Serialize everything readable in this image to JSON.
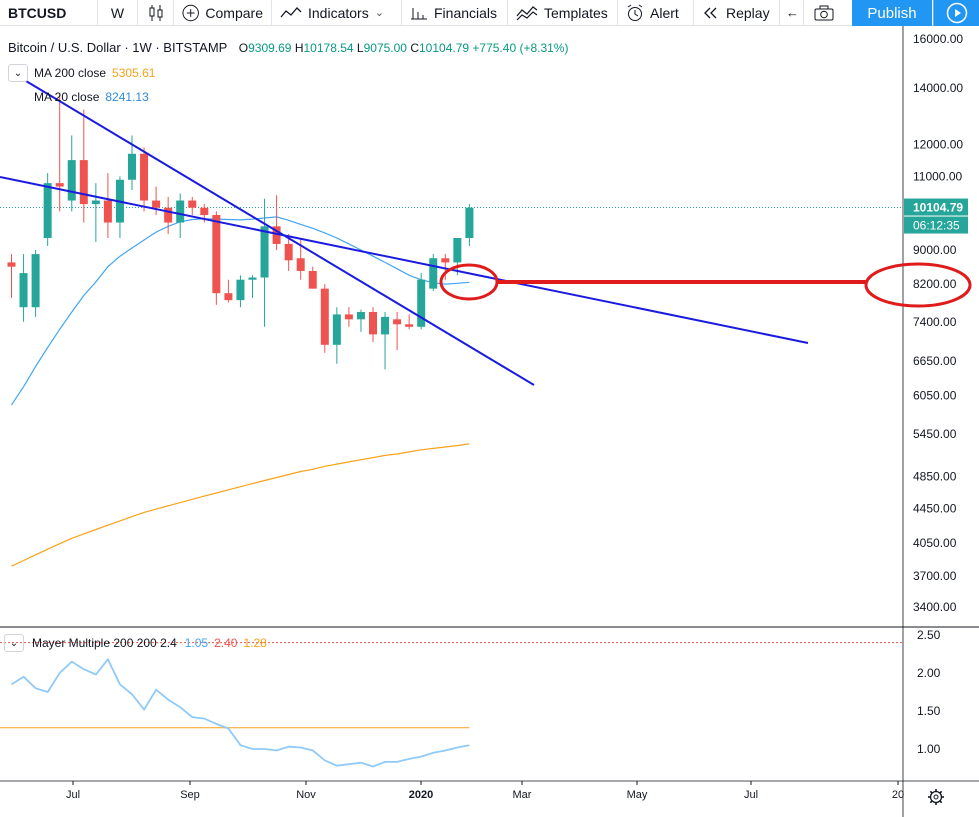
{
  "toolbar": {
    "symbol": "BTCUSD",
    "interval": "W",
    "compare": "Compare",
    "indicators": "Indicators",
    "financials": "Financials",
    "templates": "Templates",
    "alert": "Alert",
    "replay": "Replay",
    "publish": "Publish"
  },
  "legend": {
    "title": "Bitcoin / U.S. Dollar · 1W · BITSTAMP",
    "o_label": "O",
    "o": "9309.69",
    "h_label": "H",
    "h": "10178.54",
    "l_label": "L",
    "l": "9075.00",
    "c_label": "C",
    "c": "10104.79",
    "change": "+775.40 (+8.31%)",
    "ma200_label": "MA 200 close",
    "ma200_value": "5305.61",
    "ma20_label": "MA 20 close",
    "ma20_value": "8241.13",
    "mayer_label": "Mayer Multiple 200 200 2.4",
    "mayer_v1": "1.05",
    "mayer_v2": "2.40",
    "mayer_v3": "1.28"
  },
  "colors": {
    "up": "#26a69a",
    "down": "#ef5350",
    "ma20": "#42a5f5",
    "ma200": "#f7a21b",
    "trendline": "#1b1be0",
    "annotation": "#e01b1b",
    "accent": "#2196f3",
    "mayer": "#90caf9"
  },
  "chart_data": {
    "type": "candlestick",
    "title": "Bitcoin / U.S. Dollar · 1W · BITSTAMP",
    "y_scale": "log",
    "price_ticks": [
      16000,
      14000,
      12000,
      11000,
      10104.79,
      9000,
      8200,
      7400,
      6650,
      6050,
      5450,
      4850,
      4450,
      4050,
      3700,
      3400
    ],
    "current_price": "10104.79",
    "countdown": "06:12:35",
    "time_ticks": [
      "Jul",
      "Sep",
      "Nov",
      "2020",
      "Mar",
      "May",
      "Jul",
      "20"
    ],
    "candles": [
      {
        "o": 8700,
        "h": 8900,
        "l": 7900,
        "c": 8600
      },
      {
        "o": 7700,
        "h": 8900,
        "l": 7400,
        "c": 8450
      },
      {
        "o": 7700,
        "h": 9000,
        "l": 7500,
        "c": 8900
      },
      {
        "o": 9300,
        "h": 11100,
        "l": 9100,
        "c": 10800
      },
      {
        "o": 10800,
        "h": 13800,
        "l": 10000,
        "c": 10700
      },
      {
        "o": 10300,
        "h": 12300,
        "l": 10000,
        "c": 11500
      },
      {
        "o": 11500,
        "h": 13200,
        "l": 9700,
        "c": 10200
      },
      {
        "o": 10200,
        "h": 10800,
        "l": 9200,
        "c": 10300
      },
      {
        "o": 10300,
        "h": 11100,
        "l": 9300,
        "c": 9700
      },
      {
        "o": 9700,
        "h": 11000,
        "l": 9300,
        "c": 10900
      },
      {
        "o": 10900,
        "h": 12300,
        "l": 10600,
        "c": 11700
      },
      {
        "o": 11700,
        "h": 11900,
        "l": 10000,
        "c": 10300
      },
      {
        "o": 10300,
        "h": 10700,
        "l": 9900,
        "c": 10100
      },
      {
        "o": 10100,
        "h": 10400,
        "l": 9400,
        "c": 9700
      },
      {
        "o": 9700,
        "h": 10500,
        "l": 9300,
        "c": 10300
      },
      {
        "o": 10300,
        "h": 10400,
        "l": 9900,
        "c": 10100
      },
      {
        "o": 10100,
        "h": 10200,
        "l": 9700,
        "c": 9900
      },
      {
        "o": 9900,
        "h": 10000,
        "l": 7750,
        "c": 8000
      },
      {
        "o": 8000,
        "h": 8300,
        "l": 7800,
        "c": 7850
      },
      {
        "o": 7850,
        "h": 8400,
        "l": 7700,
        "c": 8300
      },
      {
        "o": 8300,
        "h": 8400,
        "l": 7900,
        "c": 8350
      },
      {
        "o": 8350,
        "h": 10350,
        "l": 7300,
        "c": 9600
      },
      {
        "o": 9600,
        "h": 10450,
        "l": 9000,
        "c": 9150
      },
      {
        "o": 9150,
        "h": 9400,
        "l": 8500,
        "c": 8750
      },
      {
        "o": 8800,
        "h": 9300,
        "l": 8300,
        "c": 8500
      },
      {
        "o": 8500,
        "h": 8600,
        "l": 8100,
        "c": 8100
      },
      {
        "o": 8100,
        "h": 8200,
        "l": 6800,
        "c": 6950
      },
      {
        "o": 6950,
        "h": 7700,
        "l": 6600,
        "c": 7550
      },
      {
        "o": 7550,
        "h": 7700,
        "l": 7300,
        "c": 7450
      },
      {
        "o": 7450,
        "h": 7650,
        "l": 7200,
        "c": 7600
      },
      {
        "o": 7600,
        "h": 7700,
        "l": 7000,
        "c": 7150
      },
      {
        "o": 7150,
        "h": 7600,
        "l": 6500,
        "c": 7500
      },
      {
        "o": 7450,
        "h": 7600,
        "l": 6850,
        "c": 7350
      },
      {
        "o": 7350,
        "h": 7550,
        "l": 7250,
        "c": 7300
      },
      {
        "o": 7300,
        "h": 8450,
        "l": 7250,
        "c": 8300
      },
      {
        "o": 8100,
        "h": 8900,
        "l": 8050,
        "c": 8800
      },
      {
        "o": 8800,
        "h": 8900,
        "l": 8300,
        "c": 8700
      },
      {
        "o": 8700,
        "h": 9300,
        "l": 8400,
        "c": 9300
      },
      {
        "o": 9300,
        "h": 10200,
        "l": 9100,
        "c": 10100
      }
    ],
    "ma20": [
      5900,
      6200,
      6550,
      6900,
      7250,
      7600,
      7950,
      8250,
      8600,
      8850,
      9050,
      9250,
      9450,
      9600,
      9720,
      9780,
      9800,
      9790,
      9780,
      9770,
      9790,
      9820,
      9850,
      9760,
      9650,
      9550,
      9430,
      9300,
      9150,
      9000,
      8850,
      8700,
      8550,
      8400,
      8300,
      8230,
      8200,
      8220,
      8241
    ],
    "ma200": [
      3800,
      3860,
      3920,
      3980,
      4040,
      4100,
      4150,
      4200,
      4250,
      4300,
      4350,
      4400,
      4440,
      4480,
      4520,
      4560,
      4600,
      4640,
      4680,
      4720,
      4760,
      4800,
      4840,
      4880,
      4920,
      4950,
      4990,
      5020,
      5050,
      5080,
      5110,
      5140,
      5160,
      5190,
      5220,
      5240,
      5260,
      5280,
      5306
    ],
    "mayer_multiple": [
      1.85,
      1.95,
      1.8,
      1.75,
      2.0,
      2.15,
      2.05,
      1.98,
      2.18,
      1.85,
      1.72,
      1.52,
      1.78,
      1.65,
      1.55,
      1.42,
      1.4,
      1.33,
      1.27,
      1.05,
      1.0,
      1.0,
      0.98,
      1.03,
      1.02,
      0.98,
      0.85,
      0.78,
      0.8,
      0.82,
      0.77,
      0.83,
      0.83,
      0.87,
      0.9,
      0.95,
      0.98,
      1.02,
      1.05
    ],
    "mayer_threshold_low": 1.28,
    "mayer_threshold_high": 2.4,
    "mayer_ticks": [
      2.5,
      2.0,
      1.5,
      1.0
    ]
  }
}
